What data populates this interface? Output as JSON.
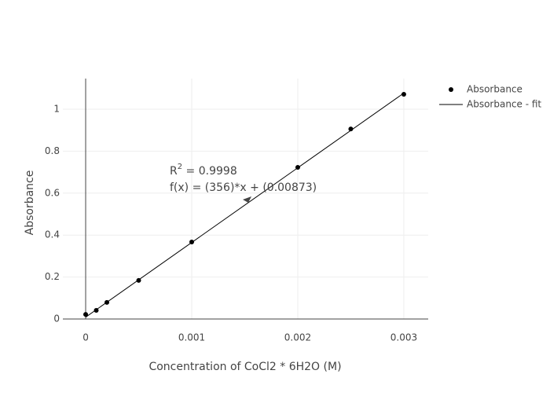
{
  "chart_data": {
    "type": "scatter",
    "x_label": "Concentration of CoCl2 * 6H2O (M)",
    "y_label": "Absorbance",
    "xlim": [
      -0.000215,
      0.00323
    ],
    "ylim": [
      0,
      1.146
    ],
    "xticks": [
      0,
      0.001,
      0.002,
      0.003
    ],
    "yticks": [
      0,
      0.2,
      0.4,
      0.6,
      0.8,
      1
    ],
    "grid": true,
    "legend": "top-right",
    "series": [
      {
        "name": "Absorbance",
        "color": "#000000",
        "mode": "markers",
        "x": [
          0,
          0.0001,
          0.0002,
          0.0005,
          0.001,
          0.002,
          0.0025,
          0.003
        ],
        "values": [
          0.022,
          0.041,
          0.079,
          0.184,
          0.367,
          0.723,
          0.906,
          1.071
        ]
      },
      {
        "name": "Absorbance - fit",
        "color": "#000000",
        "mode": "lines",
        "x": [
          0,
          0.003
        ],
        "values": [
          0.00873,
          1.07673
        ]
      }
    ],
    "annotation": {
      "r_label": "R",
      "r_sup": "2",
      "r_value": " = 0.9998",
      "formula": "f(x) = (356)*x + (0.00873)"
    }
  }
}
